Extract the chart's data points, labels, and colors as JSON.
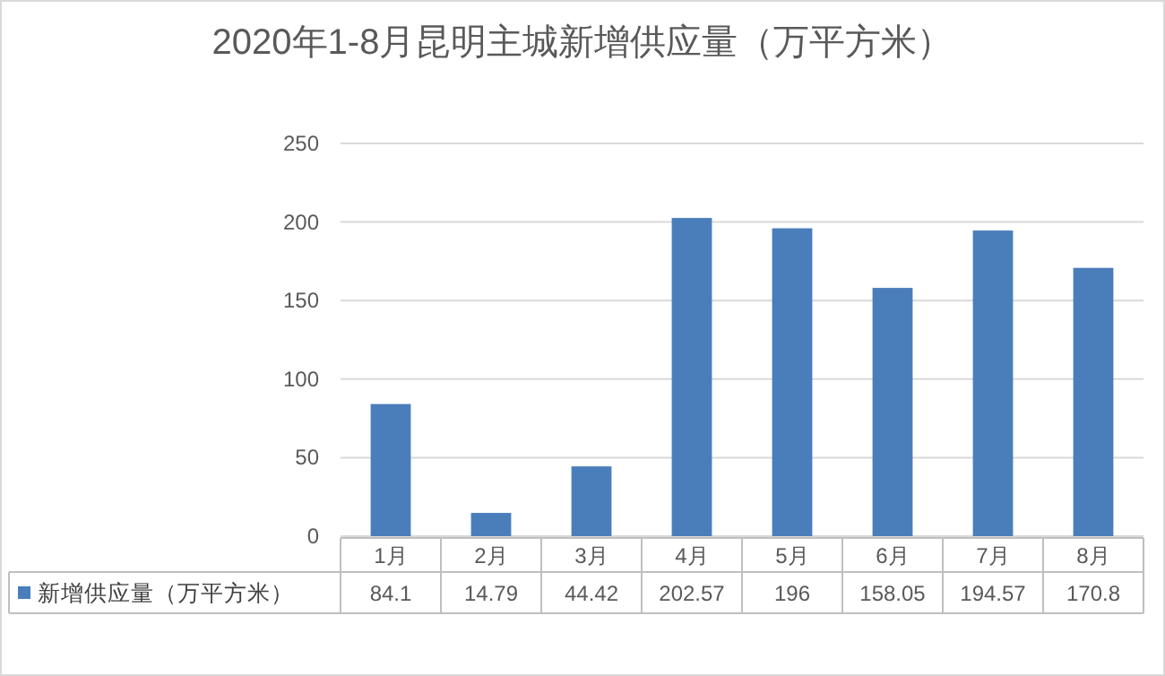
{
  "chart_data": {
    "type": "bar",
    "title": "2020年1-8月昆明主城新增供应量（万平方米）",
    "categories": [
      "1月",
      "2月",
      "3月",
      "4月",
      "5月",
      "6月",
      "7月",
      "8月"
    ],
    "series": [
      {
        "name": "新增供应量（万平方米）",
        "color": "#4a7ebb",
        "values": [
          84.1,
          14.79,
          44.42,
          202.57,
          196,
          158.05,
          194.57,
          170.8
        ]
      }
    ],
    "ylim": [
      0,
      250
    ],
    "yticks": [
      0,
      50,
      100,
      150,
      200,
      250
    ],
    "grid": "y",
    "data_labels": true,
    "legend": "bottom"
  }
}
